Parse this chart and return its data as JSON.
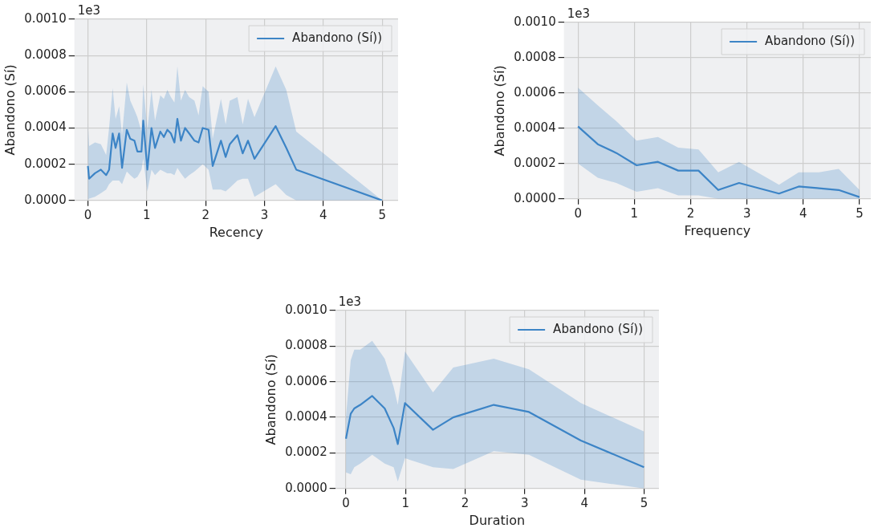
{
  "chart_data": [
    {
      "type": "line",
      "xlabel": "Recency",
      "ylabel": "Abandono (Sí)",
      "annotations": [
        "1e3"
      ],
      "grid": true,
      "legend": "top right",
      "xlim": [
        -0.23,
        5.27
      ],
      "ylim": [
        0,
        0.001
      ],
      "xticks": [
        0,
        1,
        2,
        3,
        4,
        5
      ],
      "yticks": [
        {
          "value": 0,
          "label": "0.0000"
        },
        {
          "value": 0.0002,
          "label": "0.0002"
        },
        {
          "value": 0.0004,
          "label": "0.0004"
        },
        {
          "value": 0.0006,
          "label": "0.0006"
        },
        {
          "value": 0.0008,
          "label": "0.0008"
        },
        {
          "value": 0.001,
          "label": "0.0010"
        }
      ],
      "x": [
        0,
        0.02,
        0.12,
        0.22,
        0.31,
        0.36,
        0.42,
        0.47,
        0.53,
        0.58,
        0.66,
        0.72,
        0.79,
        0.84,
        0.91,
        0.94,
        1.01,
        1.08,
        1.14,
        1.23,
        1.29,
        1.35,
        1.41,
        1.47,
        1.52,
        1.58,
        1.65,
        1.72,
        1.81,
        1.88,
        1.95,
        2.05,
        2.12,
        2.26,
        2.34,
        2.41,
        2.54,
        2.63,
        2.72,
        2.83,
        3.19,
        3.37,
        3.54,
        5
      ],
      "series": [
        {
          "name": "Abandono (Sí))",
          "color": "#3d85c6",
          "values": [
            0.00019,
            0.00012,
            0.00015,
            0.00017,
            0.00014,
            0.00017,
            0.00037,
            0.00029,
            0.00037,
            0.00018,
            0.00039,
            0.00034,
            0.00033,
            0.00027,
            0.00027,
            0.00044,
            0.00017,
            0.0004,
            0.00029,
            0.00038,
            0.00035,
            0.00039,
            0.00037,
            0.00032,
            0.00045,
            0.00033,
            0.0004,
            0.00037,
            0.00033,
            0.00032,
            0.0004,
            0.00039,
            0.00019,
            0.00033,
            0.00024,
            0.00031,
            0.00036,
            0.00026,
            0.00033,
            0.00023,
            0.00041,
            0.00029,
            0.00017,
            0
          ],
          "upper": [
            0.00043,
            0.0003,
            0.00032,
            0.00031,
            0.00025,
            0.0004,
            0.00062,
            0.00045,
            0.00052,
            0.00036,
            0.00065,
            0.00055,
            0.0005,
            0.00046,
            0.00038,
            0.00064,
            0.00039,
            0.00061,
            0.00044,
            0.00058,
            0.00056,
            0.00061,
            0.00057,
            0.00054,
            0.00074,
            0.00055,
            0.00061,
            0.00057,
            0.00055,
            0.00047,
            0.00063,
            0.0006,
            0.00034,
            0.00056,
            0.00042,
            0.00055,
            0.00057,
            0.00042,
            0.00056,
            0.00046,
            0.00074,
            0.00061,
            0.00038,
            0
          ],
          "lower": [
            0,
            1e-05,
            2e-05,
            4e-05,
            6e-05,
            9e-05,
            0.00011,
            0.00011,
            0.00011,
            9e-05,
            0.00016,
            0.00014,
            0.00012,
            0.00013,
            0.00017,
            0.00023,
            5e-05,
            0.00017,
            0.00014,
            0.00017,
            0.00016,
            0.00015,
            0.00015,
            0.00014,
            0.00018,
            0.00015,
            0.00012,
            0.00014,
            0.00016,
            0.00018,
            0.0002,
            0.00017,
            6e-05,
            6e-05,
            5e-05,
            7e-05,
            0.00011,
            0.00012,
            0.00012,
            2e-05,
            9e-05,
            3e-05,
            0,
            0
          ]
        }
      ]
    },
    {
      "type": "line",
      "xlabel": "Frequency",
      "ylabel": "Abandono (Sí)",
      "annotations": [
        "1e3"
      ],
      "grid": true,
      "legend": "top right",
      "xlim": [
        -0.25,
        5.2
      ],
      "ylim": [
        0,
        0.001
      ],
      "xticks": [
        0,
        1,
        2,
        3,
        4,
        5
      ],
      "yticks": [
        {
          "value": 0,
          "label": "0.0000"
        },
        {
          "value": 0.0002,
          "label": "0.0002"
        },
        {
          "value": 0.0004,
          "label": "0.0004"
        },
        {
          "value": 0.0006,
          "label": "0.0006"
        },
        {
          "value": 0.0008,
          "label": "0.0008"
        },
        {
          "value": 0.001,
          "label": "0.0010"
        }
      ],
      "x": [
        0,
        0.35,
        0.68,
        1.04,
        1.42,
        1.78,
        2.14,
        2.49,
        2.86,
        3.57,
        3.92,
        4.28,
        4.63,
        5
      ],
      "series": [
        {
          "name": "Abandono (Sí))",
          "color": "#3d85c6",
          "values": [
            0.00041,
            0.00031,
            0.00026,
            0.00019,
            0.00021,
            0.00016,
            0.00016,
            5e-05,
            9e-05,
            3e-05,
            7e-05,
            6e-05,
            5e-05,
            1e-05
          ],
          "upper": [
            0.00063,
            0.00053,
            0.00044,
            0.00033,
            0.00035,
            0.00029,
            0.00028,
            0.00015,
            0.00021,
            8e-05,
            0.00015,
            0.00015,
            0.00017,
            5e-05
          ],
          "lower": [
            0.0002,
            0.00012,
            9e-05,
            4e-05,
            6e-05,
            2e-05,
            2e-05,
            0,
            0,
            0,
            0,
            0,
            0,
            0
          ]
        }
      ]
    },
    {
      "type": "line",
      "xlabel": "Duration",
      "ylabel": "Abandono (Sí)",
      "annotations": [
        "1e3"
      ],
      "grid": true,
      "legend": "top right",
      "xlim": [
        -0.18,
        5.25
      ],
      "ylim": [
        0,
        0.001
      ],
      "xticks": [
        0,
        1,
        2,
        3,
        4,
        5
      ],
      "yticks": [
        {
          "value": 0,
          "label": "0.0000"
        },
        {
          "value": 0.0002,
          "label": "0.0002"
        },
        {
          "value": 0.0004,
          "label": "0.0004"
        },
        {
          "value": 0.0006,
          "label": "0.0006"
        },
        {
          "value": 0.0008,
          "label": "0.0008"
        },
        {
          "value": 0.001,
          "label": "0.0010"
        }
      ],
      "x": [
        0,
        0.08,
        0.14,
        0.24,
        0.44,
        0.65,
        0.8,
        0.87,
        0.99,
        1.46,
        1.8,
        2.48,
        3.07,
        3.94,
        5
      ],
      "series": [
        {
          "name": "Abandono (Sí))",
          "color": "#3d85c6",
          "values": [
            0.00028,
            0.00042,
            0.00045,
            0.00047,
            0.00052,
            0.00045,
            0.00034,
            0.00025,
            0.00048,
            0.00033,
            0.0004,
            0.00047,
            0.00043,
            0.00027,
            0.00012
          ],
          "upper": [
            0.0004,
            0.00072,
            0.00078,
            0.00078,
            0.00083,
            0.00073,
            0.00057,
            0.00047,
            0.00077,
            0.00054,
            0.00068,
            0.00073,
            0.00067,
            0.00048,
            0.00032
          ],
          "lower": [
            9e-05,
            8e-05,
            0.00012,
            0.00014,
            0.00019,
            0.00014,
            0.00012,
            4e-05,
            0.00017,
            0.00012,
            0.00011,
            0.00021,
            0.00019,
            5e-05,
            0
          ]
        }
      ]
    }
  ]
}
